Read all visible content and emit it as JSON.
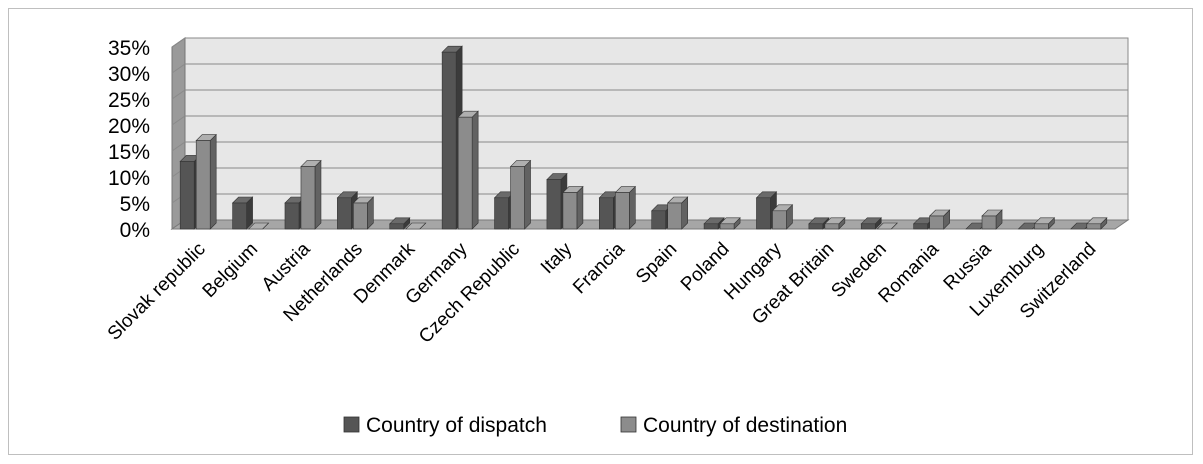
{
  "chart_data": {
    "type": "bar",
    "categories": [
      "Slovak republic",
      "Belgium",
      "Austria",
      "Netherlands",
      "Denmark",
      "Germany",
      "Czech Republic",
      "Italy",
      "Francia",
      "Spain",
      "Poland",
      "Hungary",
      "Great Britain",
      "Sweden",
      "Romania",
      "Russia",
      "Luxemburg",
      "Switzerland"
    ],
    "series": [
      {
        "name": "Country of dispatch",
        "color": "#555555",
        "values": [
          13,
          5,
          5,
          6,
          1,
          34,
          6,
          9.5,
          6,
          3.5,
          1,
          6,
          1,
          1,
          1,
          0,
          0,
          0
        ]
      },
      {
        "name": "Country of destination",
        "color": "#8c8c8c",
        "values": [
          17,
          0,
          12,
          5,
          0,
          21.5,
          12,
          7,
          7,
          5,
          1,
          3.5,
          1,
          0,
          2.5,
          2.5,
          1,
          1
        ]
      }
    ],
    "y_ticks": [
      "0%",
      "5%",
      "10%",
      "15%",
      "20%",
      "25%",
      "30%",
      "35%"
    ],
    "ylim": [
      0,
      35
    ],
    "grid": true,
    "legend_position": "bottom",
    "title": "",
    "xlabel": "",
    "ylabel": ""
  }
}
